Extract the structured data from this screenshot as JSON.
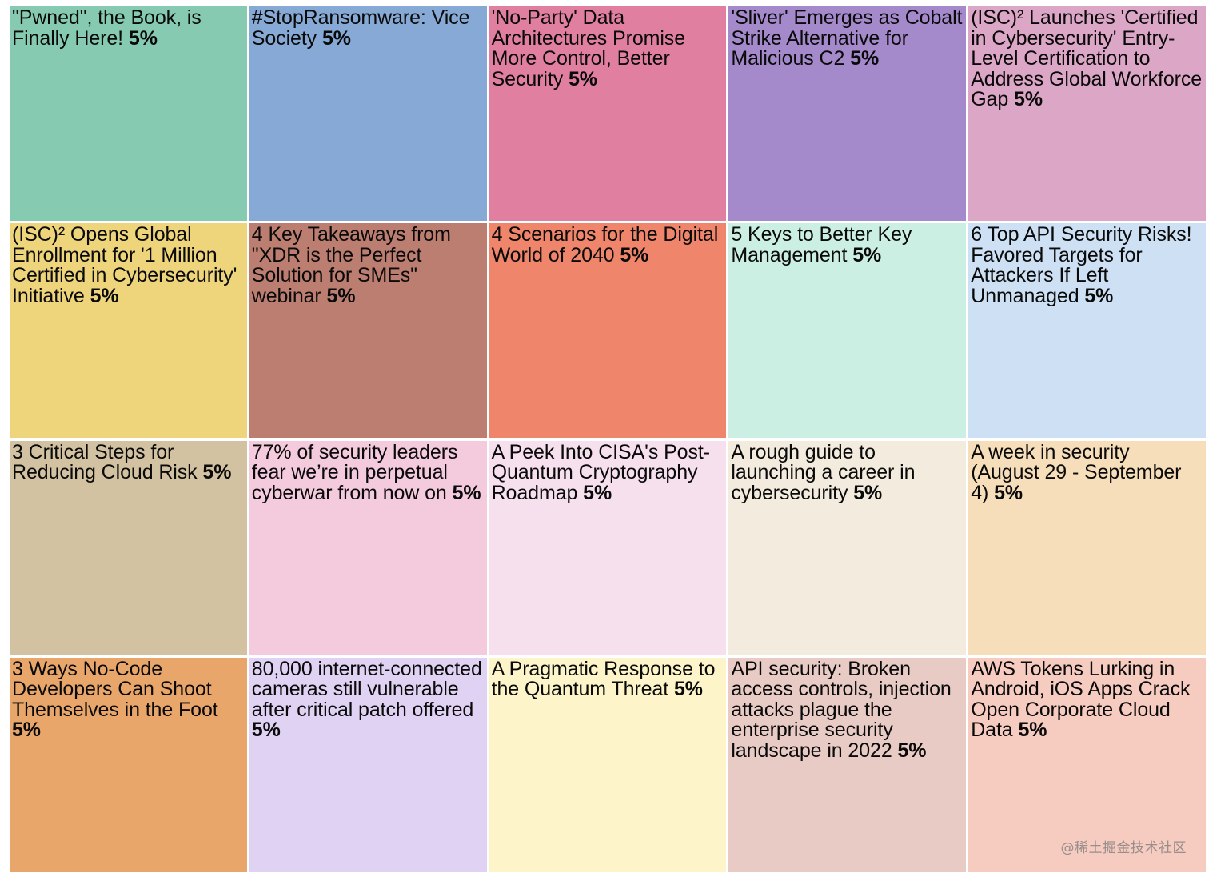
{
  "chart_data": {
    "type": "treemap",
    "unit": "%",
    "items": [
      {
        "label": "\"Pwned\", the Book, is Finally Here!",
        "value": 5,
        "value_label": "5%",
        "color": "#86cbb1"
      },
      {
        "label": "#StopRansomware: Vice Society",
        "value": 5,
        "value_label": "5%",
        "color": "#86a9d5"
      },
      {
        "label": "'No-Party' Data Architectures Promise More Control, Better Security",
        "value": 5,
        "value_label": "5%",
        "color": "#e07f9f"
      },
      {
        "label": "'Sliver' Emerges as Cobalt Strike Alternative for Malicious C2",
        "value": 5,
        "value_label": "5%",
        "color": "#a48acb"
      },
      {
        "label": "(ISC)² Launches 'Certified in Cybersecurity' Entry-Level Certification to Address Global Workforce Gap",
        "value": 5,
        "value_label": "5%",
        "color": "#dca7c6"
      },
      {
        "label": "(ISC)² Opens Global Enrollment for '1 Million Certified in Cybersecurity' Initiative",
        "value": 5,
        "value_label": "5%",
        "color": "#eed57c"
      },
      {
        "label": "4 Key Takeaways from \"XDR is the Perfect Solution for SMEs\" webinar",
        "value": 5,
        "value_label": "5%",
        "color": "#bb7e70"
      },
      {
        "label": "4 Scenarios for the Digital World of 2040",
        "value": 5,
        "value_label": "5%",
        "color": "#ef856a"
      },
      {
        "label": "5 Keys to Better Key Management",
        "value": 5,
        "value_label": "5%",
        "color": "#ccefe3"
      },
      {
        "label": "6 Top API Security Risks! Favored Targets for Attackers If Left Unmanaged",
        "value": 5,
        "value_label": "5%",
        "color": "#cde0f4"
      },
      {
        "label": "3 Critical Steps for Reducing Cloud Risk",
        "value": 5,
        "value_label": "5%",
        "color": "#d2c2a1"
      },
      {
        "label": "77% of security leaders fear we’re in perpetual cyberwar from now on",
        "value": 5,
        "value_label": "5%",
        "color": "#f4cbdc"
      },
      {
        "label": "A Peek Into CISA's Post-Quantum Cryptography Roadmap",
        "value": 5,
        "value_label": "5%",
        "color": "#f7e0ee"
      },
      {
        "label": "A rough guide to launching a career in cybersecurity",
        "value": 5,
        "value_label": "5%",
        "color": "#f3ecde"
      },
      {
        "label": "A week in security (August 29 - September 4)",
        "value": 5,
        "value_label": "5%",
        "color": "#f7deba"
      },
      {
        "label": "3 Ways No-Code Developers Can Shoot Themselves in the Foot",
        "value": 5,
        "value_label": "5%",
        "color": "#e9a66a"
      },
      {
        "label": "80,000 internet-connected cameras still vulnerable after critical patch offered",
        "value": 5,
        "value_label": "5%",
        "color": "#dfd2f2"
      },
      {
        "label": "A Pragmatic Response to the Quantum Threat",
        "value": 5,
        "value_label": "5%",
        "color": "#fdf5c9"
      },
      {
        "label": "API security: Broken access controls, injection attacks plague the enterprise security landscape in 2022",
        "value": 5,
        "value_label": "5%",
        "color": "#e8cbc4"
      },
      {
        "label": "AWS Tokens Lurking in Android, iOS Apps Crack Open Corporate Cloud Data",
        "value": 5,
        "value_label": "5%",
        "color": "#f6cbc0"
      }
    ]
  },
  "watermark": "@稀土掘金技术社区"
}
